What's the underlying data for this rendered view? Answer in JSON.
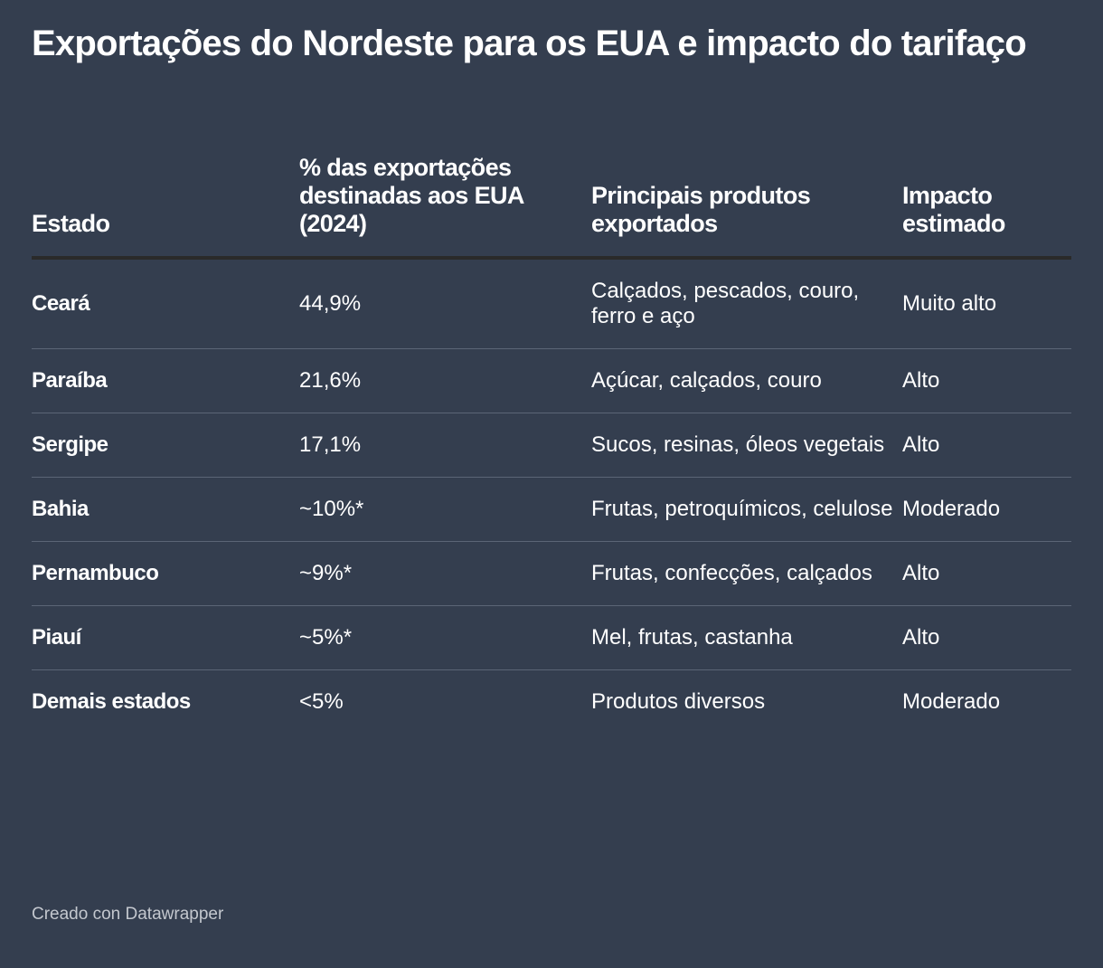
{
  "header": {
    "title": "Exportações do Nordeste para os EUA e impacto do tarifaço"
  },
  "table": {
    "columns": [
      "Estado",
      "% das exportações destinadas aos EUA (2024)",
      "Principais produtos exportados",
      "Impacto estimado"
    ],
    "rows": [
      [
        "Ceará",
        "44,9%",
        "Calçados, pescados, couro, ferro e aço",
        "Muito alto"
      ],
      [
        "Paraíba",
        "21,6%",
        "Açúcar, calçados, couro",
        "Alto"
      ],
      [
        "Sergipe",
        "17,1%",
        "Sucos, resinas, óleos vegetais",
        "Alto"
      ],
      [
        "Bahia",
        "~10%*",
        "Frutas, petroquímicos, celulose",
        "Moderado"
      ],
      [
        "Pernambuco",
        "~9%*",
        "Frutas, confecções, calçados",
        "Alto"
      ],
      [
        "Piauí",
        "~5%*",
        "Mel, frutas, castanha",
        "Alto"
      ],
      [
        "Demais estados",
        "<5%",
        "Produtos diversos",
        "Moderado"
      ]
    ]
  },
  "footer": {
    "credit": "Creado con Datawrapper"
  }
}
